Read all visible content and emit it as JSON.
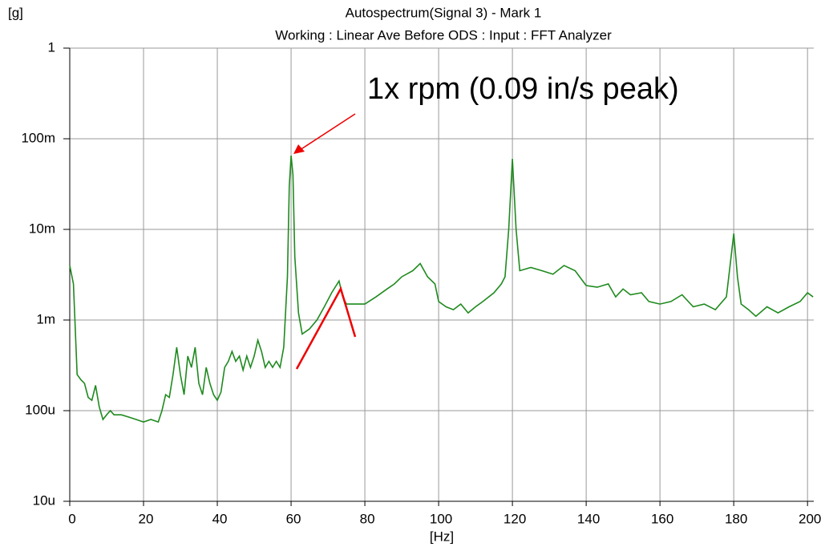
{
  "chart_data": {
    "type": "line",
    "title": "Autospectrum(Signal 3) - Mark 1",
    "subtitle": "Working : Linear Ave Before ODS : Input : FFT Analyzer",
    "y_label": "[g]",
    "x_label": "[Hz]",
    "annotation": "1x rpm (0.09 in/s peak)",
    "log_y": true,
    "grid": true,
    "xlim": [
      0,
      201.7
    ],
    "xticks": [
      0,
      20,
      40,
      60,
      80,
      100,
      120,
      140,
      160,
      180,
      200
    ],
    "ylim": [
      1e-05,
      1
    ],
    "yticks": [
      {
        "value": 1e-05,
        "label": "10u"
      },
      {
        "value": 0.0001,
        "label": "100u"
      },
      {
        "value": 0.001,
        "label": "1m"
      },
      {
        "value": 0.01,
        "label": "10m"
      },
      {
        "value": 0.1,
        "label": "100m"
      },
      {
        "value": 1,
        "label": "1"
      }
    ],
    "series": [
      {
        "color": "#1f8a1f",
        "x": [
          0,
          1,
          2,
          3,
          4,
          5,
          6,
          7,
          8,
          9,
          10,
          11,
          12,
          14,
          16,
          18,
          20,
          22,
          24,
          25,
          26,
          27,
          28,
          29,
          30,
          31,
          32,
          33,
          34,
          35,
          36,
          37,
          38,
          39,
          40,
          41,
          42,
          43,
          44,
          45,
          46,
          47,
          48,
          49,
          50,
          51,
          52,
          53,
          54,
          55,
          56,
          57,
          58,
          59,
          59.5,
          60,
          60.5,
          61,
          62,
          63,
          65,
          67,
          69,
          71,
          73,
          74,
          75,
          77,
          80,
          83,
          86,
          88,
          90,
          93,
          95,
          97,
          99,
          100,
          102,
          104,
          106,
          108,
          110,
          112,
          115,
          117,
          118,
          119,
          120,
          121,
          122,
          125,
          128,
          131,
          134,
          137,
          140,
          143,
          146,
          148,
          150,
          152,
          155,
          157,
          160,
          163,
          166,
          169,
          172,
          175,
          178,
          179,
          180,
          181,
          182,
          184,
          186,
          189,
          192,
          195,
          198,
          200,
          201.5
        ],
        "values": [
          0.004,
          0.0025,
          0.00025,
          0.00022,
          0.0002,
          0.00014,
          0.00013,
          0.00019,
          0.00011,
          8e-05,
          9e-05,
          0.0001,
          9e-05,
          9e-05,
          8.5e-05,
          8e-05,
          7.5e-05,
          8e-05,
          7.5e-05,
          0.0001,
          0.00015,
          0.00014,
          0.00025,
          0.0005,
          0.00025,
          0.00015,
          0.0004,
          0.0003,
          0.0005,
          0.0002,
          0.00015,
          0.0003,
          0.0002,
          0.00015,
          0.00013,
          0.00016,
          0.0003,
          0.00035,
          0.00045,
          0.00035,
          0.0004,
          0.00028,
          0.0004,
          0.0003,
          0.0004,
          0.0006,
          0.00045,
          0.0003,
          0.00035,
          0.0003,
          0.00035,
          0.0003,
          0.0005,
          0.003,
          0.03,
          0.065,
          0.04,
          0.005,
          0.0012,
          0.0007,
          0.0008,
          0.001,
          0.0014,
          0.002,
          0.0027,
          0.0018,
          0.0015,
          0.0015,
          0.0015,
          0.0018,
          0.0022,
          0.0025,
          0.003,
          0.0035,
          0.0042,
          0.003,
          0.0025,
          0.0016,
          0.0014,
          0.0013,
          0.0015,
          0.0012,
          0.0014,
          0.0016,
          0.002,
          0.0025,
          0.003,
          0.01,
          0.06,
          0.01,
          0.0035,
          0.0038,
          0.0035,
          0.0032,
          0.004,
          0.0035,
          0.0024,
          0.0023,
          0.0025,
          0.0018,
          0.0022,
          0.0019,
          0.002,
          0.0016,
          0.0015,
          0.0016,
          0.0019,
          0.0014,
          0.0015,
          0.0013,
          0.0018,
          0.004,
          0.009,
          0.003,
          0.0015,
          0.0013,
          0.0011,
          0.0014,
          0.0012,
          0.0014,
          0.0016,
          0.002,
          0.0018
        ]
      }
    ]
  }
}
